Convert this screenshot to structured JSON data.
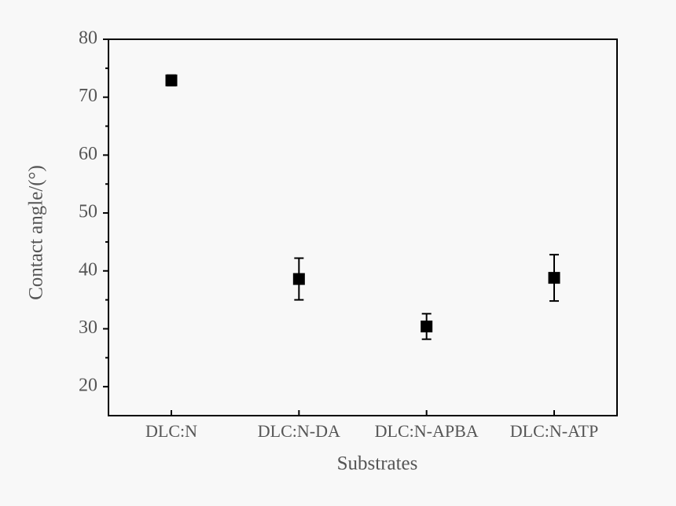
{
  "chart_data": {
    "type": "errorbar",
    "xlabel": "Substrates",
    "ylabel": "Contact angle/(°)",
    "categories": [
      "DLC:N",
      "DLC:N-DA",
      "DLC:N-APBA",
      "DLC:N-ATP"
    ],
    "values": [
      72.9,
      38.6,
      30.4,
      38.8
    ],
    "errors": [
      0.9,
      3.6,
      2.2,
      4.0
    ],
    "color": "#000000",
    "ylim": [
      15,
      80
    ],
    "yticks": [
      20,
      30,
      40,
      50,
      60,
      70,
      80
    ],
    "yminorticks": [
      25,
      35,
      45,
      55,
      65,
      75
    ]
  }
}
